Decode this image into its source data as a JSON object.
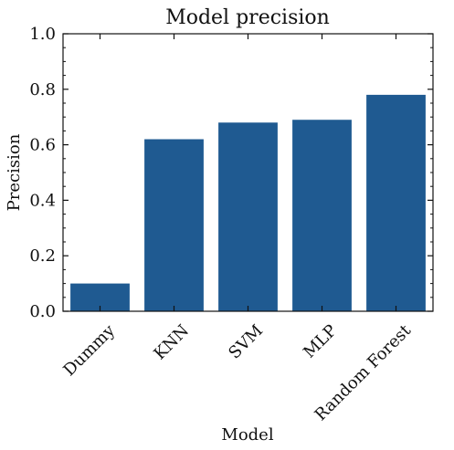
{
  "chart_data": {
    "type": "bar",
    "title": "Model precision",
    "xlabel": "Model",
    "ylabel": "Precision",
    "categories": [
      "Dummy",
      "KNN",
      "SVM",
      "MLP",
      "Random Forest"
    ],
    "values": [
      0.1,
      0.62,
      0.68,
      0.69,
      0.78
    ],
    "ylim": [
      0,
      1
    ],
    "yticks": [
      0.0,
      0.2,
      0.4,
      0.6,
      0.8,
      1.0
    ],
    "ytick_labels": [
      "0.0",
      "0.2",
      "0.4",
      "0.6",
      "0.8",
      "1.0"
    ],
    "grid": false,
    "bar_color": "#1f5a91"
  }
}
